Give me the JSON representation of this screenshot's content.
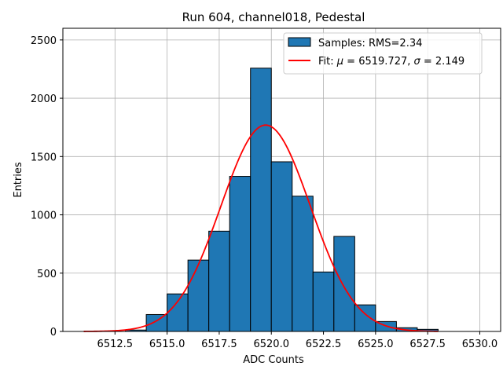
{
  "chart_data": {
    "type": "bar",
    "title": "Run 604, channel018, Pedestal",
    "xlabel": "ADC Counts",
    "ylabel": "Entries",
    "xlim": [
      6510.0,
      6531.0
    ],
    "ylim": [
      0,
      2600
    ],
    "xticks": [
      6512.5,
      6515.0,
      6517.5,
      6520.0,
      6522.5,
      6525.0,
      6527.5,
      6530.0
    ],
    "xtick_labels": [
      "6512.5",
      "6515.0",
      "6517.5",
      "6520.0",
      "6522.5",
      "6525.0",
      "6527.5",
      "6530.0"
    ],
    "yticks": [
      0,
      500,
      1000,
      1500,
      2000,
      2500
    ],
    "ytick_labels": [
      "0",
      "500",
      "1000",
      "1500",
      "2000",
      "2500"
    ],
    "grid": true,
    "legend_position": "top-right",
    "bar_color": "#1f77b4",
    "fit_color": "#ff0000",
    "histogram": {
      "name": "Samples: RMS=2.34",
      "bins": [
        {
          "left": 6513,
          "right": 6514,
          "value": 12
        },
        {
          "left": 6514,
          "right": 6515,
          "value": 145
        },
        {
          "left": 6515,
          "right": 6516,
          "value": 322
        },
        {
          "left": 6516,
          "right": 6517,
          "value": 612
        },
        {
          "left": 6517,
          "right": 6518,
          "value": 860
        },
        {
          "left": 6518,
          "right": 6519,
          "value": 1330
        },
        {
          "left": 6519,
          "right": 6520,
          "value": 2258
        },
        {
          "left": 6520,
          "right": 6521,
          "value": 1455
        },
        {
          "left": 6521,
          "right": 6522,
          "value": 1160
        },
        {
          "left": 6522,
          "right": 6523,
          "value": 510
        },
        {
          "left": 6523,
          "right": 6524,
          "value": 815
        },
        {
          "left": 6524,
          "right": 6525,
          "value": 228
        },
        {
          "left": 6525,
          "right": 6526,
          "value": 85
        },
        {
          "left": 6526,
          "right": 6527,
          "value": 32
        },
        {
          "left": 6527,
          "right": 6528,
          "value": 18
        }
      ]
    },
    "fit": {
      "label_prefix": "Fit: ",
      "label_mu": "μ",
      "label_mid": " = 6519.727, ",
      "label_sigma": "σ",
      "label_end": " = 2.149",
      "mu": 6519.727,
      "sigma": 2.149,
      "amplitude": 1770,
      "x_range": [
        6511.0,
        6528.0
      ]
    }
  }
}
